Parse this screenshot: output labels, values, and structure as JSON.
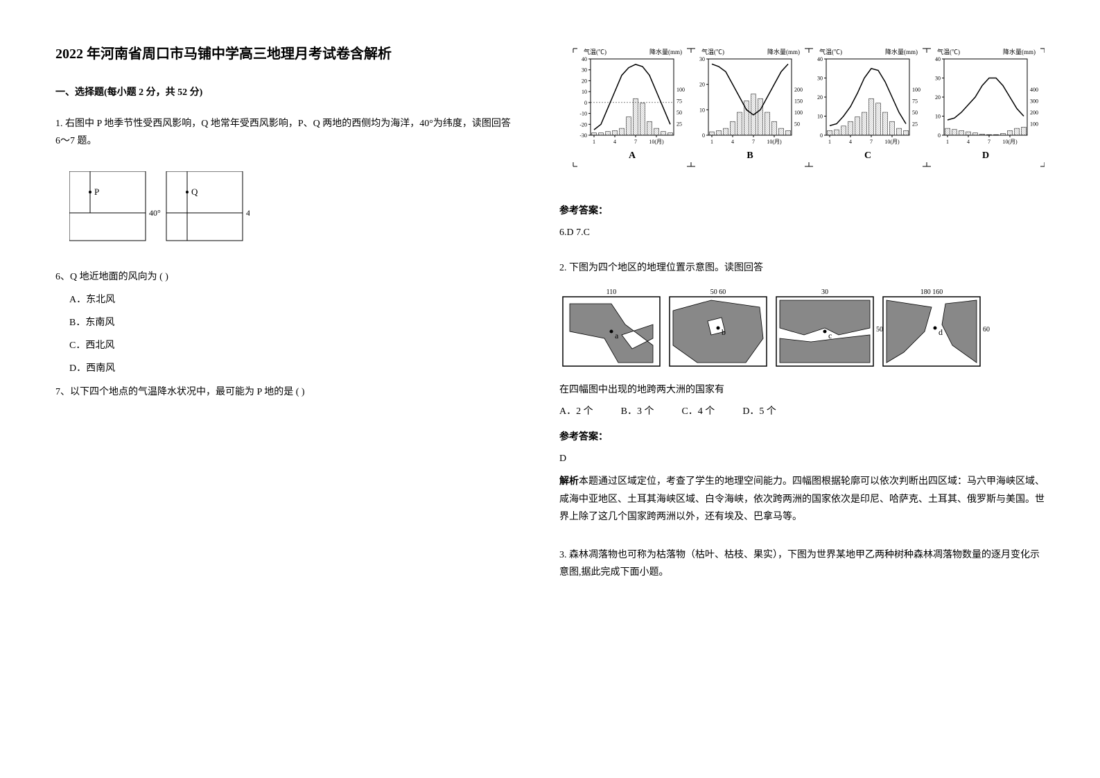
{
  "title": "2022 年河南省周口市马铺中学高三地理月考试卷含解析",
  "section1_header": "一、选择题(每小题 2 分，共 52 分)",
  "q1": {
    "stem": "1. 右图中 P 地季节性受西风影响，Q 地常年受西风影响，P、Q 两地的西侧均为海洋，40°为纬度，读图回答 6～7 题。",
    "diagram": {
      "p_label": "P",
      "q_label": "Q",
      "lat_label": "40°"
    },
    "sub6": {
      "stem": "6、Q 地近地面的风向为    (       )",
      "optA": "A．东北风",
      "optB": "B．东南风",
      "optC": "C．西北风",
      "optD": "D．西南风"
    },
    "sub7": {
      "stem": "7、以下四个地点的气温降水状况中，最可能为 P 地的是 (       )"
    }
  },
  "climate": {
    "axis_temp_label": "气温(℃)",
    "axis_precip_label": "降水量(mm)",
    "month_label": "10(月)",
    "labels": [
      "A",
      "B",
      "C",
      "D"
    ],
    "charts": {
      "A": {
        "temp_min": -30,
        "temp_max": 40,
        "temp_curve": [
          -25,
          -20,
          -5,
          10,
          25,
          32,
          35,
          33,
          25,
          10,
          -5,
          -20
        ],
        "precip": [
          5,
          5,
          8,
          10,
          15,
          40,
          80,
          70,
          30,
          15,
          8,
          5
        ]
      },
      "B": {
        "temp_min": 0,
        "temp_max": 30,
        "temp_curve": [
          28,
          27,
          25,
          20,
          15,
          10,
          8,
          10,
          15,
          20,
          25,
          28
        ],
        "precip": [
          15,
          20,
          30,
          60,
          100,
          150,
          180,
          160,
          100,
          60,
          30,
          20
        ]
      },
      "C": {
        "temp_min": 0,
        "temp_max": 40,
        "temp_curve": [
          5,
          6,
          10,
          15,
          22,
          30,
          35,
          34,
          28,
          20,
          12,
          6
        ],
        "precip": [
          10,
          12,
          20,
          30,
          40,
          50,
          80,
          70,
          50,
          30,
          15,
          10
        ]
      },
      "D": {
        "temp_min": 0,
        "temp_max": 40,
        "temp_curve": [
          8,
          9,
          12,
          16,
          20,
          26,
          30,
          30,
          26,
          20,
          14,
          10
        ],
        "precip": [
          60,
          50,
          40,
          30,
          20,
          10,
          5,
          5,
          15,
          40,
          60,
          70
        ]
      }
    }
  },
  "answers_67": {
    "label": "参考答案：",
    "text": "6.D    7.C"
  },
  "q2": {
    "stem": "2. 下图为四个地区的地理位置示意图。读图回答",
    "sub_stem": "在四幅图中出现的地跨两大洲的国家有",
    "optA": "A．2 个",
    "optB": "B．3 个",
    "optC": "C．4 个",
    "optD": "D．5 个",
    "answer_label": "参考答案：",
    "answer": "D",
    "explain_label": "解析",
    "explain": "本题通过区域定位，考查了学生的地理空间能力。四幅图根据轮廓可以依次判断出四区域：马六甲海峡区域、咸海中亚地区、土耳其海峡区域、白令海峡，依次跨两洲的国家依次是印尼、哈萨克、土耳其、俄罗斯与美国。世界上除了这几个国家跨两洲以外，还有埃及、巴拿马等。",
    "maps": {
      "labels": [
        "a",
        "b",
        "c",
        "d"
      ],
      "top_lon": [
        "110",
        "50    60",
        "30",
        "180  160"
      ],
      "side_lat": [
        "",
        "",
        "50",
        "60"
      ]
    }
  },
  "q3": {
    "stem": "3. 森林凋落物也可称为枯落物（枯叶、枯枝、果实），下图为世界某地甲乙两种树种森林凋落物数量的逐月变化示意图,据此完成下面小题。"
  },
  "colors": {
    "text": "#000000",
    "bg": "#ffffff",
    "line": "#000000",
    "fill_hatch": "#000000",
    "map_land": "#888888"
  }
}
